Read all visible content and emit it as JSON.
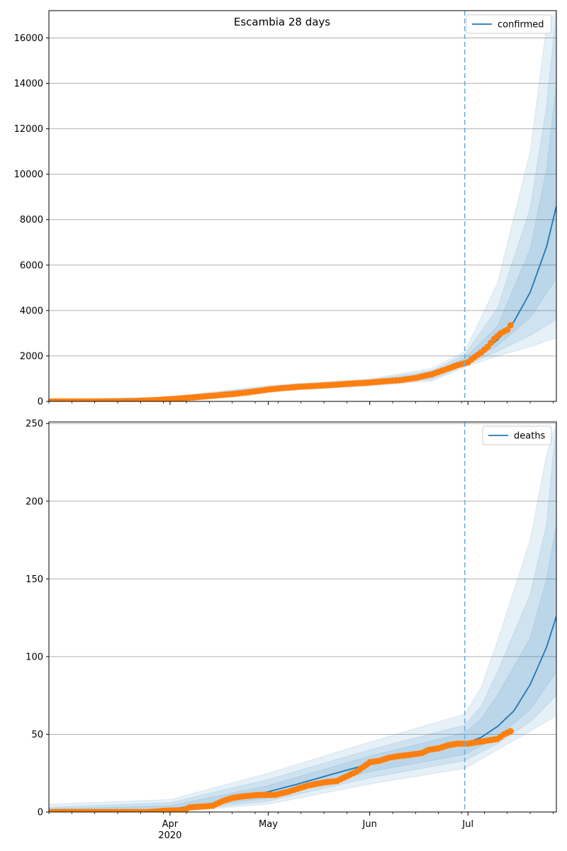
{
  "figure": {
    "title": "Escambia 28 days"
  },
  "colors": {
    "model": "#1f77b4",
    "observed": "#ff7f0e",
    "band": "#1f77b4",
    "grid": "#b0b0b0",
    "vline": "#6baed6"
  },
  "x_axis": {
    "start_date": "2020-02-24",
    "end_date": "2020-07-28",
    "major_ticks": [
      {
        "date": "2020-04-01",
        "label": "Apr",
        "sublabel": "2020"
      },
      {
        "date": "2020-05-01",
        "label": "May",
        "sublabel": ""
      },
      {
        "date": "2020-06-01",
        "label": "Jun",
        "sublabel": ""
      },
      {
        "date": "2020-07-01",
        "label": "Jul",
        "sublabel": ""
      }
    ],
    "forecast_start": "2020-06-30"
  },
  "chart_data": [
    {
      "type": "line",
      "legend": "confirmed",
      "legend_position": "top-right",
      "ylim": [
        0,
        17200
      ],
      "yticks": [
        0,
        2000,
        4000,
        6000,
        8000,
        10000,
        12000,
        14000,
        16000
      ],
      "grid": true,
      "model_median": [
        [
          "2020-02-24",
          0
        ],
        [
          "2020-03-15",
          5
        ],
        [
          "2020-03-25",
          50
        ],
        [
          "2020-04-01",
          120
        ],
        [
          "2020-04-10",
          230
        ],
        [
          "2020-04-20",
          370
        ],
        [
          "2020-05-01",
          560
        ],
        [
          "2020-05-10",
          650
        ],
        [
          "2020-05-20",
          730
        ],
        [
          "2020-06-01",
          830
        ],
        [
          "2020-06-10",
          920
        ],
        [
          "2020-06-20",
          1150
        ],
        [
          "2020-06-30",
          1750
        ],
        [
          "2020-07-05",
          2150
        ],
        [
          "2020-07-10",
          2700
        ],
        [
          "2020-07-15",
          3500
        ],
        [
          "2020-07-20",
          4800
        ],
        [
          "2020-07-25",
          6800
        ],
        [
          "2020-07-28",
          8600
        ]
      ],
      "bands": [
        {
          "lower": [
            [
              "2020-02-24",
              0
            ],
            [
              "2020-04-01",
              80
            ],
            [
              "2020-05-01",
              430
            ],
            [
              "2020-06-01",
              680
            ],
            [
              "2020-06-20",
              900
            ],
            [
              "2020-06-30",
              1500
            ],
            [
              "2020-07-10",
              2000
            ],
            [
              "2020-07-20",
              2400
            ],
            [
              "2020-07-28",
              2800
            ]
          ],
          "upper": [
            [
              "2020-02-24",
              80
            ],
            [
              "2020-04-01",
              200
            ],
            [
              "2020-05-01",
              700
            ],
            [
              "2020-06-01",
              1000
            ],
            [
              "2020-06-20",
              1450
            ],
            [
              "2020-06-30",
              2200
            ],
            [
              "2020-07-10",
              5200
            ],
            [
              "2020-07-20",
              11000
            ],
            [
              "2020-07-25",
              16500
            ],
            [
              "2020-07-28",
              17200
            ]
          ]
        },
        {
          "lower": [
            [
              "2020-02-24",
              0
            ],
            [
              "2020-04-01",
              90
            ],
            [
              "2020-05-01",
              470
            ],
            [
              "2020-06-01",
              720
            ],
            [
              "2020-06-20",
              970
            ],
            [
              "2020-06-30",
              1580
            ],
            [
              "2020-07-10",
              2200
            ],
            [
              "2020-07-20",
              2900
            ],
            [
              "2020-07-28",
              3600
            ]
          ],
          "upper": [
            [
              "2020-02-24",
              60
            ],
            [
              "2020-04-01",
              170
            ],
            [
              "2020-05-01",
              650
            ],
            [
              "2020-06-01",
              950
            ],
            [
              "2020-06-20",
              1350
            ],
            [
              "2020-06-30",
              2050
            ],
            [
              "2020-07-10",
              4100
            ],
            [
              "2020-07-20",
              8500
            ],
            [
              "2020-07-25",
              13000
            ],
            [
              "2020-07-28",
              17200
            ]
          ]
        },
        {
          "lower": [
            [
              "2020-02-24",
              0
            ],
            [
              "2020-04-01",
              100
            ],
            [
              "2020-05-01",
              510
            ],
            [
              "2020-06-01",
              770
            ],
            [
              "2020-06-20",
              1050
            ],
            [
              "2020-06-30",
              1650
            ],
            [
              "2020-07-10",
              2450
            ],
            [
              "2020-07-20",
              3700
            ],
            [
              "2020-07-28",
              5400
            ]
          ],
          "upper": [
            [
              "2020-02-24",
              40
            ],
            [
              "2020-04-01",
              150
            ],
            [
              "2020-05-01",
              610
            ],
            [
              "2020-06-01",
              900
            ],
            [
              "2020-06-20",
              1250
            ],
            [
              "2020-06-30",
              1900
            ],
            [
              "2020-07-10",
              3300
            ],
            [
              "2020-07-20",
              6700
            ],
            [
              "2020-07-25",
              10200
            ],
            [
              "2020-07-28",
              14000
            ]
          ]
        }
      ],
      "observed": [
        [
          "2020-02-24",
          0
        ],
        [
          "2020-03-05",
          0
        ],
        [
          "2020-03-15",
          2
        ],
        [
          "2020-03-22",
          20
        ],
        [
          "2020-03-28",
          60
        ],
        [
          "2020-04-01",
          100
        ],
        [
          "2020-04-05",
          140
        ],
        [
          "2020-04-10",
          200
        ],
        [
          "2020-04-15",
          260
        ],
        [
          "2020-04-20",
          320
        ],
        [
          "2020-04-25",
          400
        ],
        [
          "2020-05-01",
          520
        ],
        [
          "2020-05-05",
          580
        ],
        [
          "2020-05-10",
          640
        ],
        [
          "2020-05-15",
          680
        ],
        [
          "2020-05-20",
          720
        ],
        [
          "2020-05-25",
          770
        ],
        [
          "2020-06-01",
          830
        ],
        [
          "2020-06-05",
          880
        ],
        [
          "2020-06-10",
          930
        ],
        [
          "2020-06-15",
          1030
        ],
        [
          "2020-06-20",
          1200
        ],
        [
          "2020-06-25",
          1450
        ],
        [
          "2020-06-28",
          1600
        ],
        [
          "2020-07-01",
          1720
        ],
        [
          "2020-07-03",
          1950
        ],
        [
          "2020-07-05",
          2150
        ],
        [
          "2020-07-07",
          2400
        ],
        [
          "2020-07-09",
          2750
        ],
        [
          "2020-07-11",
          3000
        ],
        [
          "2020-07-13",
          3150
        ],
        [
          "2020-07-14",
          3350
        ]
      ]
    },
    {
      "type": "line",
      "legend": "deaths",
      "legend_position": "top-right",
      "ylim": [
        0,
        251
      ],
      "yticks": [
        0,
        50,
        100,
        150,
        200,
        250
      ],
      "grid": true,
      "model_median": [
        [
          "2020-02-24",
          0
        ],
        [
          "2020-03-25",
          1
        ],
        [
          "2020-04-01",
          2
        ],
        [
          "2020-04-10",
          4
        ],
        [
          "2020-04-20",
          8
        ],
        [
          "2020-05-01",
          13
        ],
        [
          "2020-05-10",
          18
        ],
        [
          "2020-05-20",
          24
        ],
        [
          "2020-06-01",
          31
        ],
        [
          "2020-06-10",
          35
        ],
        [
          "2020-06-20",
          39
        ],
        [
          "2020-06-30",
          44
        ],
        [
          "2020-07-05",
          48
        ],
        [
          "2020-07-10",
          55
        ],
        [
          "2020-07-15",
          65
        ],
        [
          "2020-07-20",
          82
        ],
        [
          "2020-07-25",
          106
        ],
        [
          "2020-07-28",
          126
        ]
      ],
      "bands": [
        {
          "lower": [
            [
              "2020-02-24",
              0
            ],
            [
              "2020-04-01",
              0
            ],
            [
              "2020-05-01",
              5
            ],
            [
              "2020-06-01",
              18
            ],
            [
              "2020-06-30",
              28
            ],
            [
              "2020-07-10",
              40
            ],
            [
              "2020-07-20",
              52
            ],
            [
              "2020-07-28",
              62
            ]
          ],
          "upper": [
            [
              "2020-02-24",
              5
            ],
            [
              "2020-04-01",
              8
            ],
            [
              "2020-05-01",
              25
            ],
            [
              "2020-06-01",
              45
            ],
            [
              "2020-06-30",
              63
            ],
            [
              "2020-07-05",
              80
            ],
            [
              "2020-07-10",
              110
            ],
            [
              "2020-07-20",
              175
            ],
            [
              "2020-07-25",
              230
            ],
            [
              "2020-07-28",
              251
            ]
          ]
        },
        {
          "lower": [
            [
              "2020-02-24",
              0
            ],
            [
              "2020-04-01",
              0
            ],
            [
              "2020-05-01",
              7
            ],
            [
              "2020-06-01",
              22
            ],
            [
              "2020-06-30",
              33
            ],
            [
              "2020-07-10",
              44
            ],
            [
              "2020-07-20",
              58
            ],
            [
              "2020-07-28",
              75
            ]
          ],
          "upper": [
            [
              "2020-02-24",
              3
            ],
            [
              "2020-04-01",
              6
            ],
            [
              "2020-05-01",
              21
            ],
            [
              "2020-06-01",
              40
            ],
            [
              "2020-06-30",
              56
            ],
            [
              "2020-07-05",
              68
            ],
            [
              "2020-07-10",
              90
            ],
            [
              "2020-07-20",
              140
            ],
            [
              "2020-07-25",
              185
            ],
            [
              "2020-07-28",
              251
            ]
          ]
        },
        {
          "lower": [
            [
              "2020-02-24",
              0
            ],
            [
              "2020-04-01",
              1
            ],
            [
              "2020-05-01",
              9
            ],
            [
              "2020-06-01",
              26
            ],
            [
              "2020-06-30",
              37
            ],
            [
              "2020-07-10",
              48
            ],
            [
              "2020-07-20",
              66
            ],
            [
              "2020-07-28",
              90
            ]
          ],
          "upper": [
            [
              "2020-02-24",
              2
            ],
            [
              "2020-04-01",
              4
            ],
            [
              "2020-05-01",
              17
            ],
            [
              "2020-06-01",
              36
            ],
            [
              "2020-06-30",
              51
            ],
            [
              "2020-07-05",
              60
            ],
            [
              "2020-07-10",
              75
            ],
            [
              "2020-07-20",
              112
            ],
            [
              "2020-07-25",
              150
            ],
            [
              "2020-07-28",
              185
            ]
          ]
        }
      ],
      "observed": [
        [
          "2020-02-24",
          0
        ],
        [
          "2020-03-10",
          0
        ],
        [
          "2020-03-25",
          0
        ],
        [
          "2020-04-01",
          1
        ],
        [
          "2020-04-05",
          1
        ],
        [
          "2020-04-07",
          3
        ],
        [
          "2020-04-14",
          4
        ],
        [
          "2020-04-17",
          7
        ],
        [
          "2020-04-20",
          9
        ],
        [
          "2020-04-23",
          10
        ],
        [
          "2020-04-28",
          11
        ],
        [
          "2020-05-03",
          11
        ],
        [
          "2020-05-07",
          13
        ],
        [
          "2020-05-10",
          15
        ],
        [
          "2020-05-13",
          17
        ],
        [
          "2020-05-18",
          19
        ],
        [
          "2020-05-22",
          20
        ],
        [
          "2020-05-25",
          23
        ],
        [
          "2020-05-28",
          26
        ],
        [
          "2020-05-30",
          29
        ],
        [
          "2020-06-01",
          32
        ],
        [
          "2020-06-04",
          33
        ],
        [
          "2020-06-07",
          35
        ],
        [
          "2020-06-10",
          36
        ],
        [
          "2020-06-14",
          37
        ],
        [
          "2020-06-17",
          38
        ],
        [
          "2020-06-19",
          40
        ],
        [
          "2020-06-22",
          41
        ],
        [
          "2020-06-25",
          43
        ],
        [
          "2020-06-28",
          44
        ],
        [
          "2020-07-01",
          44
        ],
        [
          "2020-07-04",
          45
        ],
        [
          "2020-07-07",
          46
        ],
        [
          "2020-07-10",
          47
        ],
        [
          "2020-07-12",
          50
        ],
        [
          "2020-07-14",
          52
        ]
      ]
    }
  ]
}
